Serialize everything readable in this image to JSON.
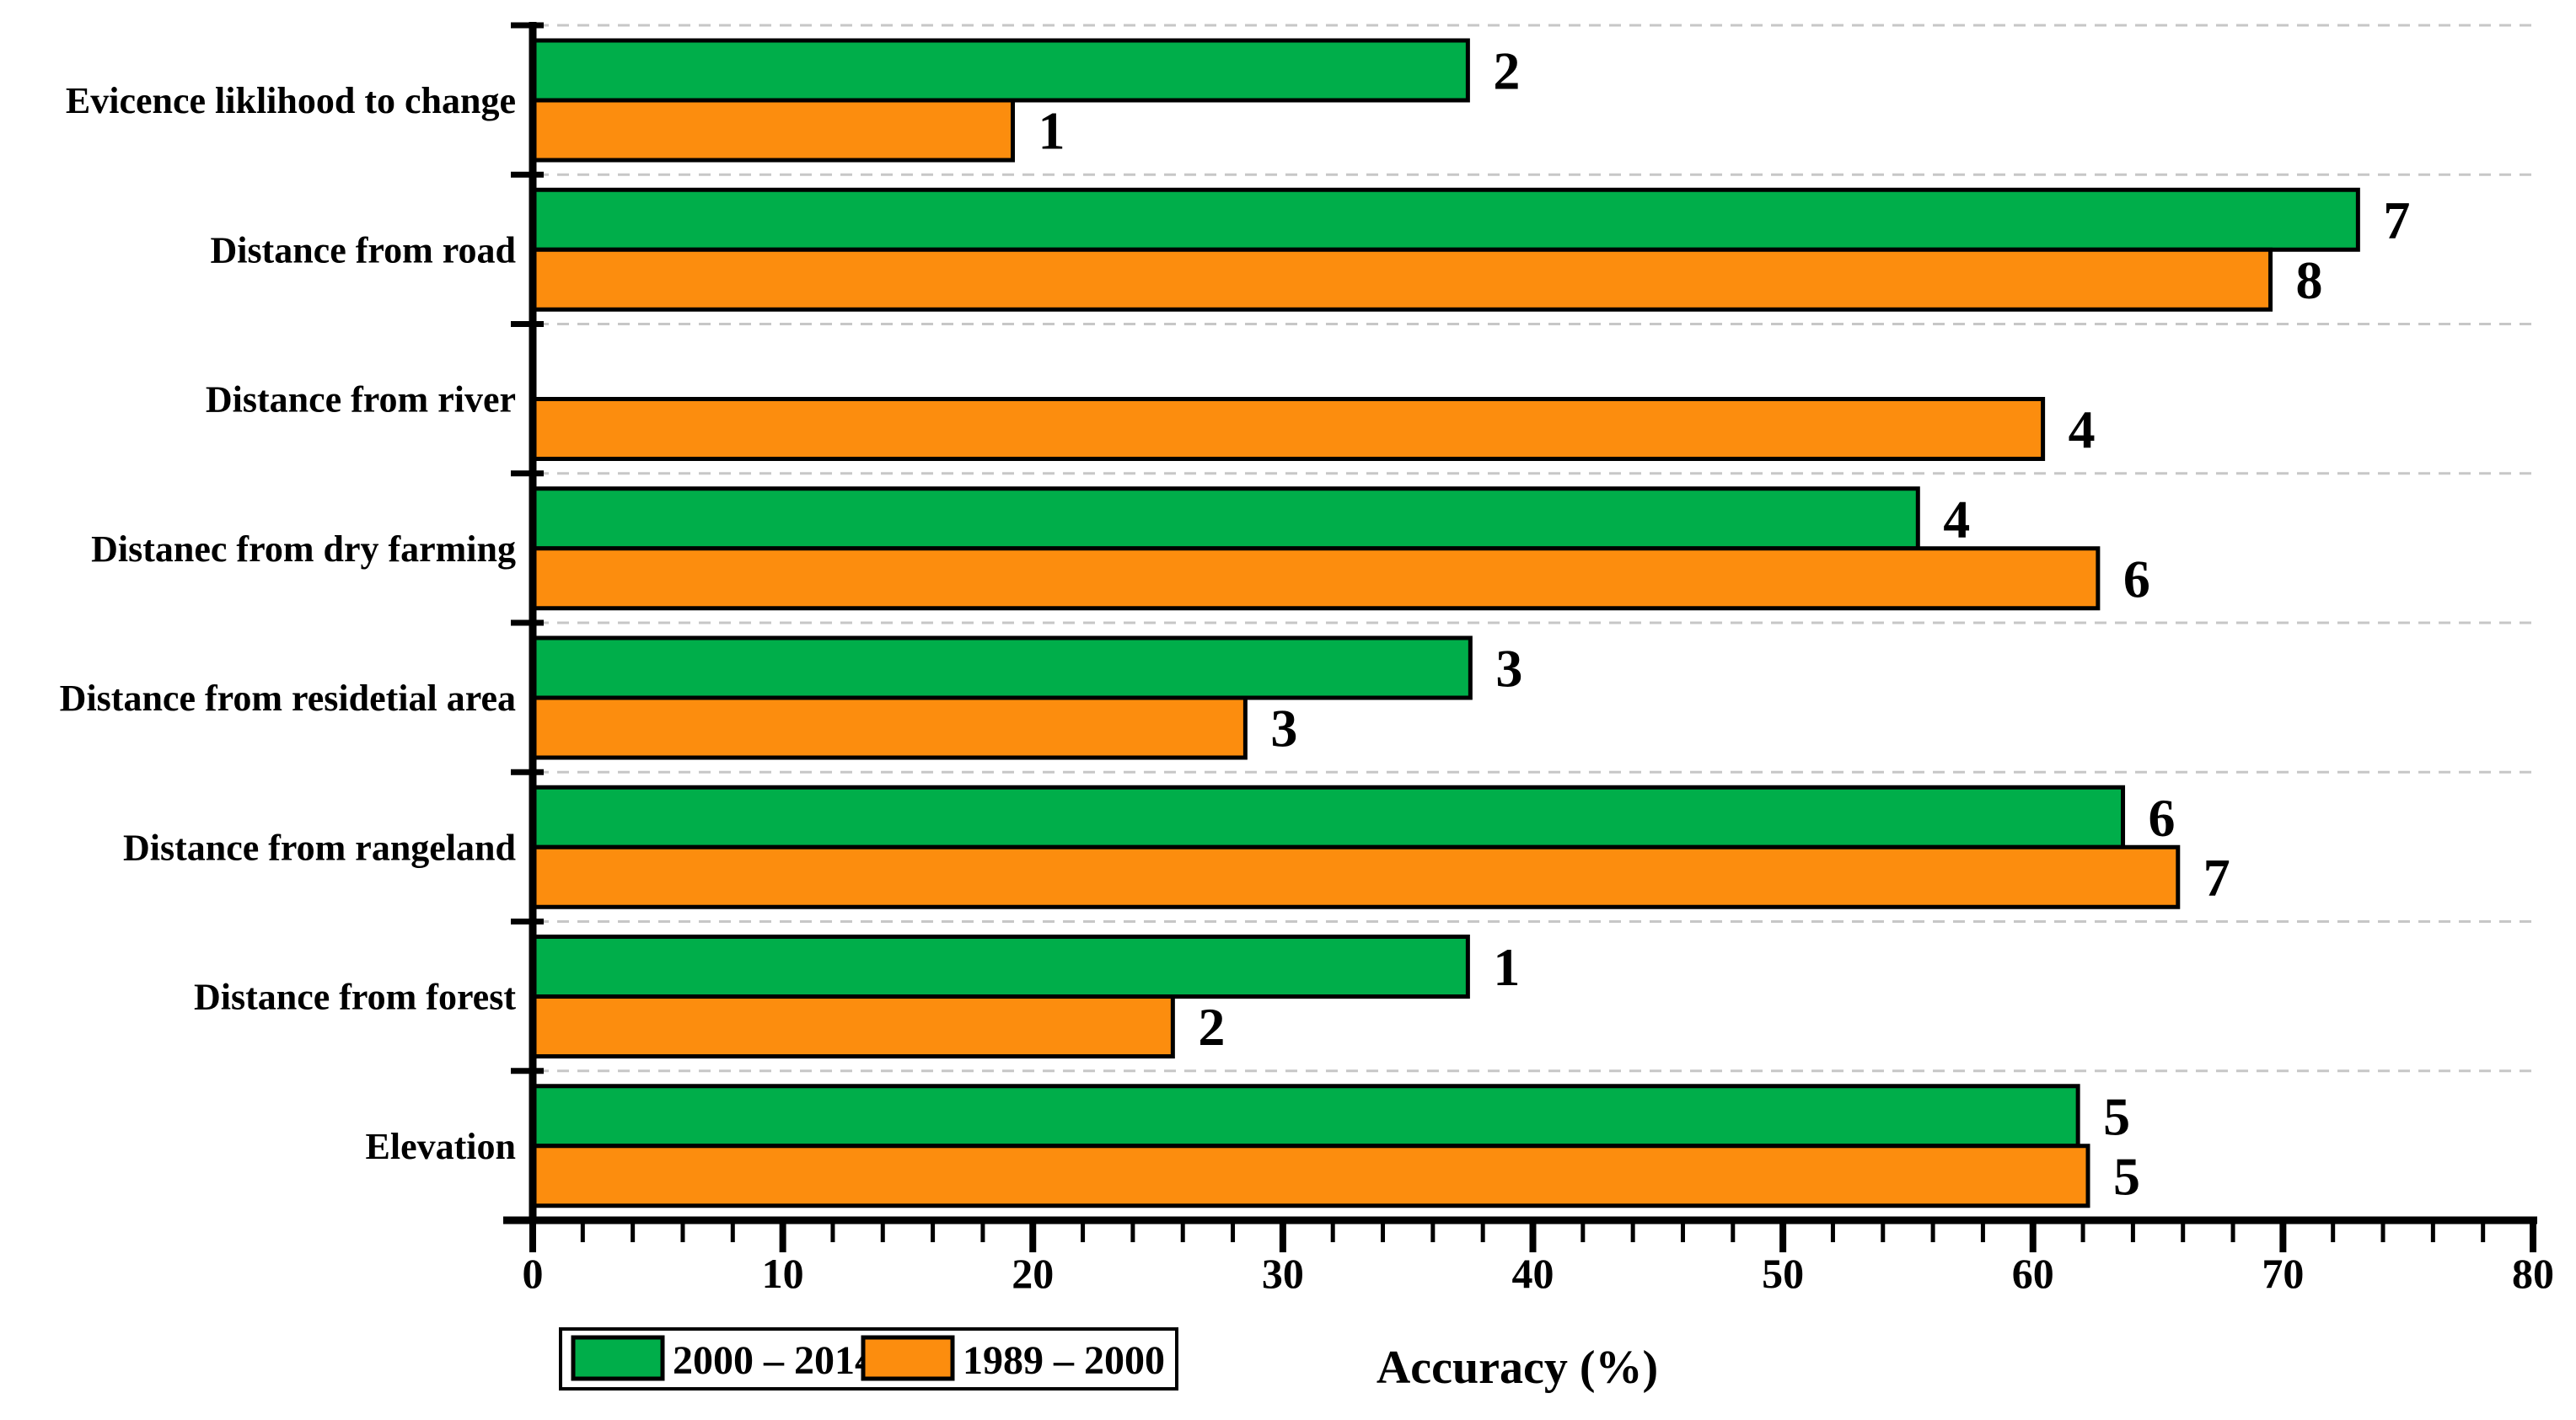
{
  "figure": {
    "background": "#ffffff",
    "axis_color": "#000000",
    "grid_color": "#c7c7c7",
    "label_color": "#000000"
  },
  "chart_data": {
    "type": "bar",
    "orientation": "horizontal",
    "title": "",
    "xlabel": "Accuracy (%)",
    "ylabel": "",
    "xlim": [
      0,
      80
    ],
    "x_ticks": [
      0,
      10,
      20,
      30,
      40,
      50,
      60,
      70,
      80
    ],
    "x_minor_tick_step": 2,
    "grid": "dashed gray horizontal separator line at each category boundary",
    "legend_position": "bottom-left, horizontal, boxed",
    "categories": [
      "Evicence liklihood to change",
      "Distance from road",
      "Distance from river",
      "Distanec from dry farming",
      "Distance from residetial area",
      "Distance from rangeland",
      "Distance from forest",
      "Elevation"
    ],
    "series": [
      {
        "name": "2000 – 2014",
        "color": "#00ae4a",
        "values": [
          37.4,
          73.0,
          0,
          55.4,
          37.5,
          63.6,
          37.4,
          61.8
        ],
        "bar_labels": [
          "2",
          "7",
          "",
          "4",
          "3",
          "6",
          "1",
          "5"
        ]
      },
      {
        "name": "1989 – 2000",
        "color": "#fc8d0e",
        "values": [
          19.2,
          69.5,
          60.4,
          62.6,
          28.5,
          65.8,
          25.6,
          62.2
        ],
        "bar_labels": [
          "1",
          "8",
          "4",
          "6",
          "3",
          "7",
          "2",
          "5"
        ]
      }
    ]
  }
}
